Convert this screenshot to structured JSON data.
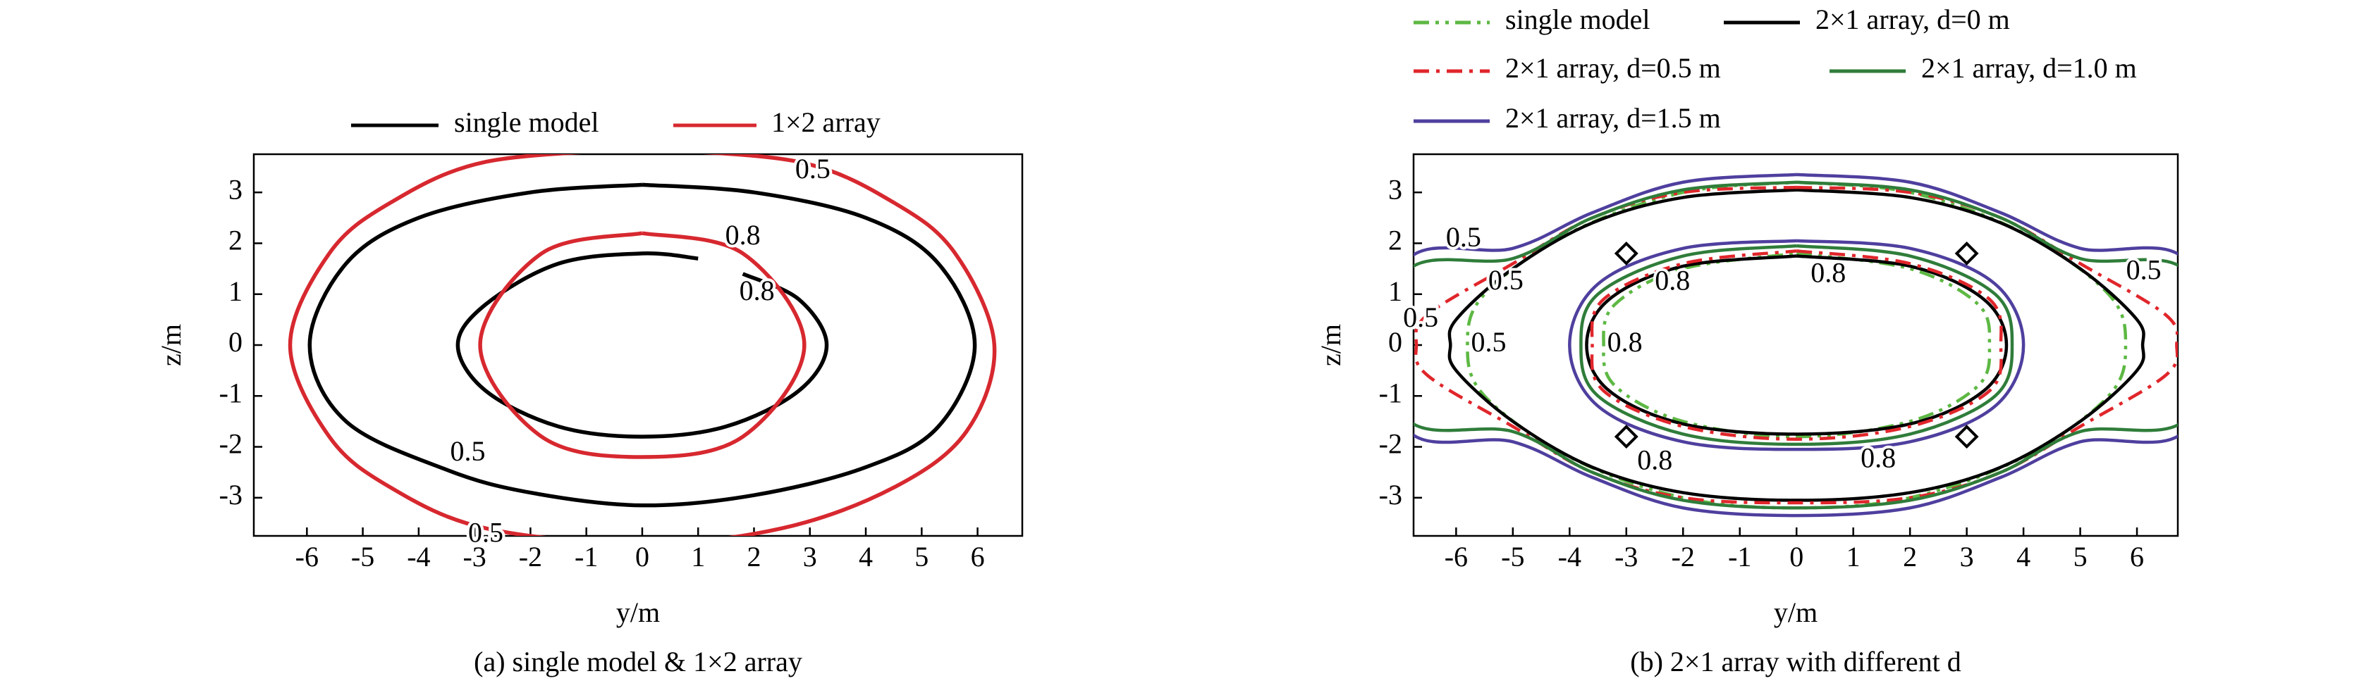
{
  "chart_data": [
    {
      "type": "contour",
      "title": "(a) single model & 1×2 array",
      "x_label": "y/m",
      "y_label": "z/m",
      "xlim": [
        -6.95,
        6.8
      ],
      "ylim": [
        -3.75,
        3.75
      ],
      "xticks": [
        -6,
        -5,
        -4,
        -3,
        -2,
        -1,
        0,
        1,
        2,
        3,
        4,
        5,
        6
      ],
      "yticks": [
        -3,
        -2,
        -1,
        0,
        1,
        2,
        3
      ],
      "series": [
        {
          "name": "single model",
          "color": "#000000",
          "style": "solid",
          "contours": [
            {
              "level": 0.5,
              "x": [
                0,
                2,
                4,
                5.3,
                5.95,
                5.3,
                4,
                2,
                0,
                -2,
                -3.5,
                -5.3,
                -5.95,
                -5.3,
                -4,
                -2,
                0
              ],
              "values": [
                3.15,
                3.0,
                2.5,
                1.6,
                0,
                -1.6,
                -2.4,
                -2.95,
                -3.15,
                -2.9,
                -2.45,
                -1.5,
                0,
                1.6,
                2.5,
                3.0,
                3.15
              ]
            },
            {
              "level": 0.8,
              "x": [
                1,
                0,
                -1.5,
                -2.8,
                -3.3,
                -2.8,
                -1.5,
                0,
                1.5,
                2.8,
                3.3,
                2.8,
                1.8
              ],
              "values": [
                1.7,
                1.8,
                1.6,
                0.8,
                0,
                -0.9,
                -1.6,
                -1.8,
                -1.6,
                -0.9,
                0,
                0.9,
                1.4
              ]
            }
          ]
        },
        {
          "name": "1×2 array",
          "color": "#d7282f",
          "style": "solid",
          "contours": [
            {
              "level": 0.5,
              "x": [
                0,
                2.8,
                4.5,
                5.6,
                6.3,
                5.8,
                4.5,
                2.5,
                0,
                -2.8,
                -4.5,
                -5.6,
                -6.3,
                -5.6,
                -4.5,
                -2.8,
                0
              ],
              "values": [
                3.85,
                3.6,
                2.8,
                1.8,
                0,
                -1.7,
                -2.8,
                -3.6,
                -3.9,
                -3.6,
                -2.8,
                -1.8,
                0,
                1.8,
                2.8,
                3.6,
                3.85
              ]
            },
            {
              "level": 0.8,
              "x": [
                0,
                1.8,
                2.9,
                1.8,
                0,
                -1.8,
                -2.9,
                -1.8,
                0
              ],
              "values": [
                2.2,
                1.8,
                0,
                -1.8,
                -2.2,
                -1.8,
                0,
                1.8,
                2.2
              ]
            }
          ]
        }
      ]
    },
    {
      "type": "contour",
      "title": "(b) 2×1 array with different d",
      "x_label": "y/m",
      "y_label": "z/m",
      "xlim": [
        -6.75,
        6.72
      ],
      "ylim": [
        -3.75,
        3.75
      ],
      "xticks": [
        -6,
        -5,
        -4,
        -3,
        -2,
        -1,
        0,
        1,
        2,
        3,
        4,
        5,
        6
      ],
      "yticks": [
        -3,
        -2,
        -1,
        0,
        1,
        2,
        3
      ],
      "markers": {
        "x": [
          -3,
          3,
          -3,
          3
        ],
        "values": [
          1.8,
          1.8,
          -1.8,
          -1.8
        ]
      },
      "series": [
        {
          "name": "single model",
          "color": "#5db843",
          "style": "dashdotdot",
          "contours": [
            {
              "level": 0.5,
              "x": [
                0,
                2,
                4,
                5.5,
                5.8,
                5.5,
                4,
                2,
                0,
                -2,
                -4,
                -5.5,
                -5.8,
                -5.5,
                -4,
                -2,
                0
              ],
              "values": [
                3.2,
                3.0,
                2.2,
                1.0,
                0,
                -1.0,
                -2.2,
                -3.0,
                -3.2,
                -3.0,
                -2.2,
                -1.0,
                0,
                1.0,
                2.2,
                3.0,
                3.2
              ]
            },
            {
              "level": 0.8,
              "x": [
                0,
                2,
                3.2,
                3.4,
                3.2,
                2,
                0,
                -2,
                -3.2,
                -3.4,
                -3.2,
                -2,
                0
              ],
              "values": [
                1.8,
                1.5,
                0.8,
                0,
                -0.8,
                -1.5,
                -1.8,
                -1.5,
                -0.8,
                0,
                0.8,
                1.5,
                1.8
              ]
            }
          ]
        },
        {
          "name": "2×1 array, d=0 m",
          "color": "#000000",
          "style": "solid",
          "contours": [
            {
              "level": 0.5,
              "x": [
                0,
                2,
                3.6,
                5,
                6,
                6.1,
                6,
                5,
                3.6,
                2,
                0,
                -2,
                -3.6,
                -5,
                -6,
                -6.1,
                -6,
                -5,
                -3.6,
                -2,
                0
              ],
              "values": [
                3.05,
                2.9,
                2.4,
                1.5,
                0.5,
                0,
                -0.5,
                -1.5,
                -2.4,
                -2.9,
                -3.05,
                -2.9,
                -2.4,
                -1.5,
                -0.5,
                0,
                0.5,
                1.5,
                2.4,
                2.9,
                3.05
              ]
            },
            {
              "level": 0.8,
              "x": [
                0,
                2,
                3.3,
                3.7,
                3.3,
                2,
                0,
                -2,
                -3.3,
                -3.7,
                -3.3,
                -2,
                0
              ],
              "values": [
                1.75,
                1.55,
                0.9,
                0,
                -0.9,
                -1.55,
                -1.75,
                -1.55,
                -0.9,
                0,
                0.9,
                1.55,
                1.75
              ]
            }
          ]
        },
        {
          "name": "2×1 array, d=0.5 m",
          "color": "#e0262b",
          "style": "dashdot",
          "contours": [
            {
              "level": 0.5,
              "x": [
                0,
                2,
                3.6,
                5,
                6.5,
                6.7,
                6.5,
                5,
                3.6,
                2,
                0,
                -2,
                -3.6,
                -5,
                -6.5,
                -6.7,
                -6.5,
                -5,
                -3.6,
                -2,
                0
              ],
              "values": [
                3.1,
                3.0,
                2.5,
                1.6,
                0.6,
                0,
                -0.6,
                -1.6,
                -2.5,
                -3.0,
                -3.1,
                -3.0,
                -2.5,
                -1.6,
                -0.6,
                0,
                0.6,
                1.6,
                2.5,
                3.0,
                3.1
              ]
            },
            {
              "level": 0.8,
              "x": [
                0,
                2,
                3.4,
                3.6,
                3.4,
                2,
                0,
                -2,
                -3.4,
                -3.6,
                -3.4,
                -2,
                0
              ],
              "values": [
                1.85,
                1.6,
                0.9,
                0,
                -0.9,
                -1.6,
                -1.85,
                -1.6,
                -0.9,
                0,
                0.9,
                1.6,
                1.85
              ]
            }
          ]
        },
        {
          "name": "2×1 array, d=1.0 m",
          "color": "#2f7d3a",
          "style": "solid",
          "contours": [
            {
              "level": 0.5,
              "x": [
                0,
                2,
                3.6,
                5,
                6.9,
                6.9,
                5,
                3.6,
                2,
                0,
                -2,
                -3.6,
                -5,
                -6.9,
                -6.9,
                -5,
                -3.6,
                -2,
                0
              ],
              "values": [
                3.2,
                3.05,
                2.5,
                1.7,
                1.4,
                -1.4,
                -1.7,
                -2.5,
                -3.05,
                -3.2,
                -3.05,
                -2.5,
                -1.7,
                -1.4,
                1.4,
                1.7,
                2.5,
                3.05,
                3.2
              ]
            },
            {
              "level": 0.8,
              "x": [
                0,
                2,
                3.5,
                3.8,
                3.5,
                2,
                0,
                -2,
                -3.5,
                -3.8,
                -3.5,
                -2,
                0
              ],
              "values": [
                1.95,
                1.75,
                1.0,
                0,
                -1.0,
                -1.75,
                -1.95,
                -1.75,
                -1.0,
                0,
                1.0,
                1.75,
                1.95
              ]
            }
          ]
        },
        {
          "name": "2×1 array, d=1.5 m",
          "color": "#4f3f9e",
          "style": "solid",
          "contours": [
            {
              "level": 0.5,
              "x": [
                0,
                2,
                3.6,
                5,
                6.9,
                6.9,
                5,
                3.6,
                2,
                0,
                -2,
                -3.6,
                -5,
                -6.9,
                -6.9,
                -5,
                -3.6,
                -2,
                0
              ],
              "values": [
                3.35,
                3.2,
                2.6,
                1.9,
                1.6,
                -1.6,
                -1.9,
                -2.6,
                -3.2,
                -3.35,
                -3.2,
                -2.6,
                -1.9,
                -1.6,
                1.6,
                1.9,
                2.6,
                3.2,
                3.35
              ]
            },
            {
              "level": 0.8,
              "x": [
                0,
                2,
                3.5,
                4.0,
                3.5,
                2,
                0,
                -2,
                -3.5,
                -4.0,
                -3.5,
                -2,
                0
              ],
              "values": [
                2.05,
                1.9,
                1.2,
                0,
                -1.2,
                -1.9,
                -2.05,
                -1.9,
                -1.2,
                0,
                1.2,
                1.9,
                2.05
              ]
            }
          ]
        }
      ]
    }
  ]
}
